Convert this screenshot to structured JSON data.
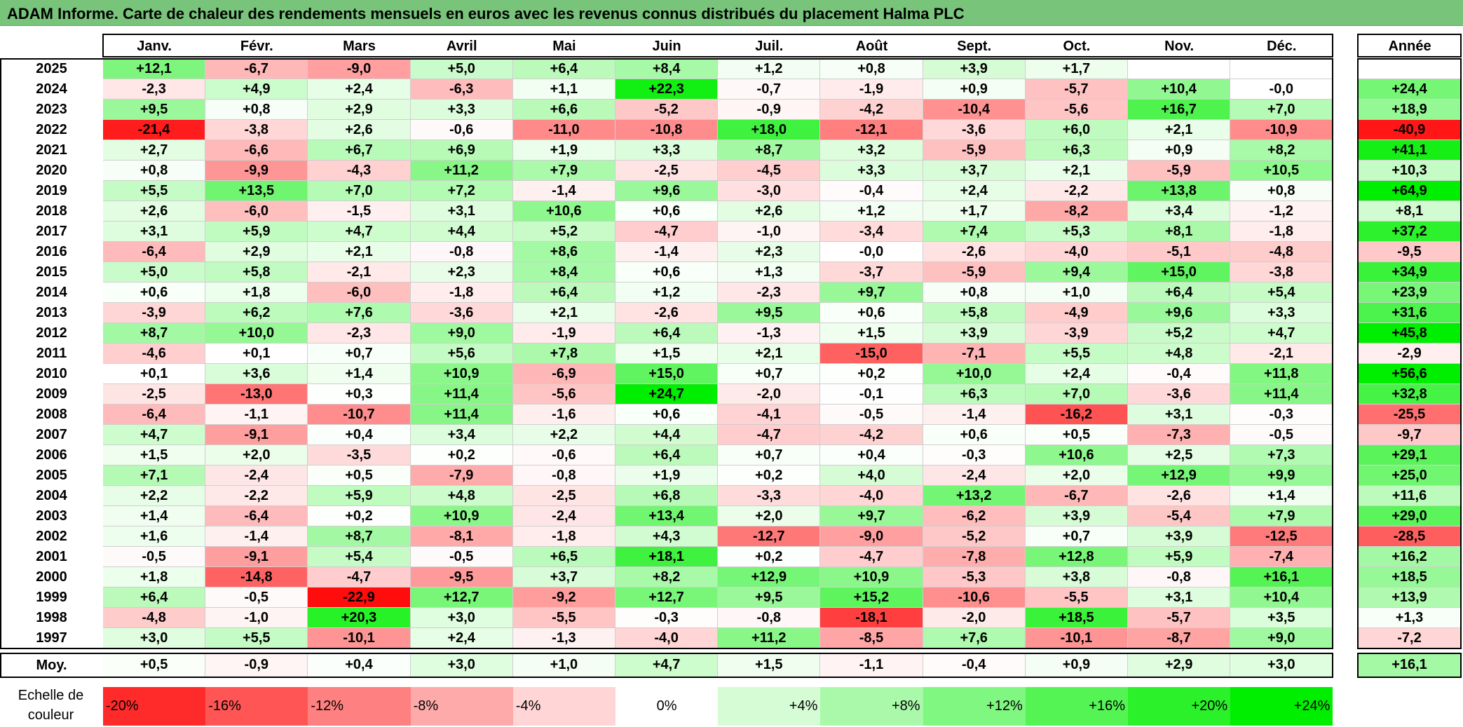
{
  "title": "ADAM Informe. Carte de chaleur des rendements mensuels en euros avec les revenus connus distribués du placement Halma PLC",
  "chart_data": {
    "type": "heatmap",
    "title": "ADAM Informe. Carte de chaleur des rendements mensuels en euros avec les revenus connus distribués du placement Halma PLC",
    "columns": [
      "Janv.",
      "Févr.",
      "Mars",
      "Avril",
      "Mai",
      "Juin",
      "Juil.",
      "Août",
      "Sept.",
      "Oct.",
      "Nov.",
      "Déc."
    ],
    "annual_header": "Année",
    "rows": [
      {
        "year": "2025",
        "values": [
          "+12,1",
          "-6,7",
          "-9,0",
          "+5,0",
          "+6,4",
          "+8,4",
          "+1,2",
          "+0,8",
          "+3,9",
          "+1,7",
          "",
          ""
        ],
        "annual": ""
      },
      {
        "year": "2024",
        "values": [
          "-2,3",
          "+4,9",
          "+2,4",
          "-6,3",
          "+1,1",
          "+22,3",
          "-0,7",
          "-1,9",
          "+0,9",
          "-5,7",
          "+10,4",
          "-0,0"
        ],
        "annual": "+24,4"
      },
      {
        "year": "2023",
        "values": [
          "+9,5",
          "+0,8",
          "+2,9",
          "+3,3",
          "+6,6",
          "-5,2",
          "-0,9",
          "-4,2",
          "-10,4",
          "-5,6",
          "+16,7",
          "+7,0"
        ],
        "annual": "+18,9"
      },
      {
        "year": "2022",
        "values": [
          "-21,4",
          "-3,8",
          "+2,6",
          "-0,6",
          "-11,0",
          "-10,8",
          "+18,0",
          "-12,1",
          "-3,6",
          "+6,0",
          "+2,1",
          "-10,9"
        ],
        "annual": "-40,9"
      },
      {
        "year": "2021",
        "values": [
          "+2,7",
          "-6,6",
          "+6,7",
          "+6,9",
          "+1,9",
          "+3,3",
          "+8,7",
          "+3,2",
          "-5,9",
          "+6,3",
          "+0,9",
          "+8,2"
        ],
        "annual": "+41,1"
      },
      {
        "year": "2020",
        "values": [
          "+0,8",
          "-9,9",
          "-4,3",
          "+11,2",
          "+7,9",
          "-2,5",
          "-4,5",
          "+3,3",
          "+3,7",
          "+2,1",
          "-5,9",
          "+10,5"
        ],
        "annual": "+10,3"
      },
      {
        "year": "2019",
        "values": [
          "+5,5",
          "+13,5",
          "+7,0",
          "+7,2",
          "-1,4",
          "+9,6",
          "-3,0",
          "-0,4",
          "+2,4",
          "-2,2",
          "+13,8",
          "+0,8"
        ],
        "annual": "+64,9"
      },
      {
        "year": "2018",
        "values": [
          "+2,6",
          "-6,0",
          "-1,5",
          "+3,1",
          "+10,6",
          "+0,6",
          "+2,6",
          "+1,2",
          "+1,7",
          "-8,2",
          "+3,4",
          "-1,2"
        ],
        "annual": "+8,1"
      },
      {
        "year": "2017",
        "values": [
          "+3,1",
          "+5,9",
          "+4,7",
          "+4,4",
          "+5,2",
          "-4,7",
          "-1,0",
          "-3,4",
          "+7,4",
          "+5,3",
          "+8,1",
          "-1,8"
        ],
        "annual": "+37,2"
      },
      {
        "year": "2016",
        "values": [
          "-6,4",
          "+2,9",
          "+2,1",
          "-0,8",
          "+8,6",
          "-1,4",
          "+2,3",
          "-0,0",
          "-2,6",
          "-4,0",
          "-5,1",
          "-4,8"
        ],
        "annual": "-9,5"
      },
      {
        "year": "2015",
        "values": [
          "+5,0",
          "+5,8",
          "-2,1",
          "+2,3",
          "+8,4",
          "+0,6",
          "+1,3",
          "-3,7",
          "-5,9",
          "+9,4",
          "+15,0",
          "-3,8"
        ],
        "annual": "+34,9"
      },
      {
        "year": "2014",
        "values": [
          "+0,6",
          "+1,8",
          "-6,0",
          "-1,8",
          "+6,4",
          "+1,2",
          "-2,3",
          "+9,7",
          "+0,8",
          "+1,0",
          "+6,4",
          "+5,4"
        ],
        "annual": "+23,9"
      },
      {
        "year": "2013",
        "values": [
          "-3,9",
          "+6,2",
          "+7,6",
          "-3,6",
          "+2,1",
          "-2,6",
          "+9,5",
          "+0,6",
          "+5,8",
          "-4,9",
          "+9,6",
          "+3,3"
        ],
        "annual": "+31,6"
      },
      {
        "year": "2012",
        "values": [
          "+8,7",
          "+10,0",
          "-2,3",
          "+9,0",
          "-1,9",
          "+6,4",
          "-1,3",
          "+1,5",
          "+3,9",
          "-3,9",
          "+5,2",
          "+4,7"
        ],
        "annual": "+45,8"
      },
      {
        "year": "2011",
        "values": [
          "-4,6",
          "+0,1",
          "+0,7",
          "+5,6",
          "+7,8",
          "+1,5",
          "+2,1",
          "-15,0",
          "-7,1",
          "+5,5",
          "+4,8",
          "-2,1"
        ],
        "annual": "-2,9"
      },
      {
        "year": "2010",
        "values": [
          "+0,1",
          "+3,6",
          "+1,4",
          "+10,9",
          "-6,9",
          "+15,0",
          "+0,7",
          "+0,2",
          "+10,0",
          "+2,4",
          "-0,4",
          "+11,8"
        ],
        "annual": "+56,6"
      },
      {
        "year": "2009",
        "values": [
          "-2,5",
          "-13,0",
          "+0,3",
          "+11,4",
          "-5,6",
          "+24,7",
          "-2,0",
          "-0,1",
          "+6,3",
          "+7,0",
          "-3,6",
          "+11,4"
        ],
        "annual": "+32,8"
      },
      {
        "year": "2008",
        "values": [
          "-6,4",
          "-1,1",
          "-10,7",
          "+11,4",
          "-1,6",
          "+0,6",
          "-4,1",
          "-0,5",
          "-1,4",
          "-16,2",
          "+3,1",
          "-0,3"
        ],
        "annual": "-25,5"
      },
      {
        "year": "2007",
        "values": [
          "+4,7",
          "-9,1",
          "+0,4",
          "+3,4",
          "+2,2",
          "+4,4",
          "-4,7",
          "-4,2",
          "+0,6",
          "+0,5",
          "-7,3",
          "-0,5"
        ],
        "annual": "-9,7"
      },
      {
        "year": "2006",
        "values": [
          "+1,5",
          "+2,0",
          "-3,5",
          "+0,2",
          "-0,6",
          "+6,4",
          "+0,7",
          "+0,4",
          "-0,3",
          "+10,6",
          "+2,5",
          "+7,3"
        ],
        "annual": "+29,1"
      },
      {
        "year": "2005",
        "values": [
          "+7,1",
          "-2,4",
          "+0,5",
          "-7,9",
          "-0,8",
          "+1,9",
          "+0,2",
          "+4,0",
          "-2,4",
          "+2,0",
          "+12,9",
          "+9,9"
        ],
        "annual": "+25,0"
      },
      {
        "year": "2004",
        "values": [
          "+2,2",
          "-2,2",
          "+5,9",
          "+4,8",
          "-2,5",
          "+6,8",
          "-3,3",
          "-4,0",
          "+13,2",
          "-6,7",
          "-2,6",
          "+1,4"
        ],
        "annual": "+11,6"
      },
      {
        "year": "2003",
        "values": [
          "+1,4",
          "-6,4",
          "+0,2",
          "+10,9",
          "-2,4",
          "+13,4",
          "+2,0",
          "+9,7",
          "-6,2",
          "+3,9",
          "-5,4",
          "+7,9"
        ],
        "annual": "+29,0"
      },
      {
        "year": "2002",
        "values": [
          "+1,6",
          "-1,4",
          "+8,7",
          "-8,1",
          "-1,8",
          "+4,3",
          "-12,7",
          "-9,0",
          "-5,2",
          "+0,7",
          "+3,9",
          "-12,5"
        ],
        "annual": "-28,5"
      },
      {
        "year": "2001",
        "values": [
          "-0,5",
          "-9,1",
          "+5,4",
          "-0,5",
          "+6,5",
          "+18,1",
          "+0,2",
          "-4,7",
          "-7,8",
          "+12,8",
          "+5,9",
          "-7,4"
        ],
        "annual": "+16,2"
      },
      {
        "year": "2000",
        "values": [
          "+1,8",
          "-14,8",
          "-4,7",
          "-9,5",
          "+3,7",
          "+8,2",
          "+12,9",
          "+10,9",
          "-5,3",
          "+3,8",
          "-0,8",
          "+16,1"
        ],
        "annual": "+18,5"
      },
      {
        "year": "1999",
        "values": [
          "+6,4",
          "-0,5",
          "-22,9",
          "+12,7",
          "-9,2",
          "+12,7",
          "+9,5",
          "+15,2",
          "-10,6",
          "-5,5",
          "+3,1",
          "+10,4"
        ],
        "annual": "+13,9"
      },
      {
        "year": "1998",
        "values": [
          "-4,8",
          "-1,0",
          "+20,3",
          "+3,0",
          "-5,5",
          "-0,3",
          "-0,8",
          "-18,1",
          "-2,0",
          "+18,5",
          "-5,7",
          "+3,5"
        ],
        "annual": "+1,3"
      },
      {
        "year": "1997",
        "values": [
          "+3,0",
          "+5,5",
          "-10,1",
          "+2,4",
          "-1,3",
          "-4,0",
          "+11,2",
          "-8,5",
          "+7,6",
          "-10,1",
          "-8,7",
          "+9,0"
        ],
        "annual": "-7,2"
      }
    ],
    "average": {
      "label": "Moy.",
      "values": [
        "+0,5",
        "-0,9",
        "+0,4",
        "+3,0",
        "+1,0",
        "+4,7",
        "+1,5",
        "-1,1",
        "-0,4",
        "+0,9",
        "+2,9",
        "+3,0"
      ],
      "annual": "+16,1"
    },
    "legend": {
      "label_line1": "Echelle de",
      "label_line2": "couleur",
      "stops": [
        "-20%",
        "-16%",
        "-12%",
        "-8%",
        "-4%",
        "0%",
        "+4%",
        "+8%",
        "+12%",
        "+16%",
        "+20%",
        "+24%"
      ]
    },
    "colors": {
      "title_bg": "#78c47a",
      "negative_max": "#ff0000",
      "neutral": "#ffffff",
      "positive_max": "#00ee00"
    }
  }
}
